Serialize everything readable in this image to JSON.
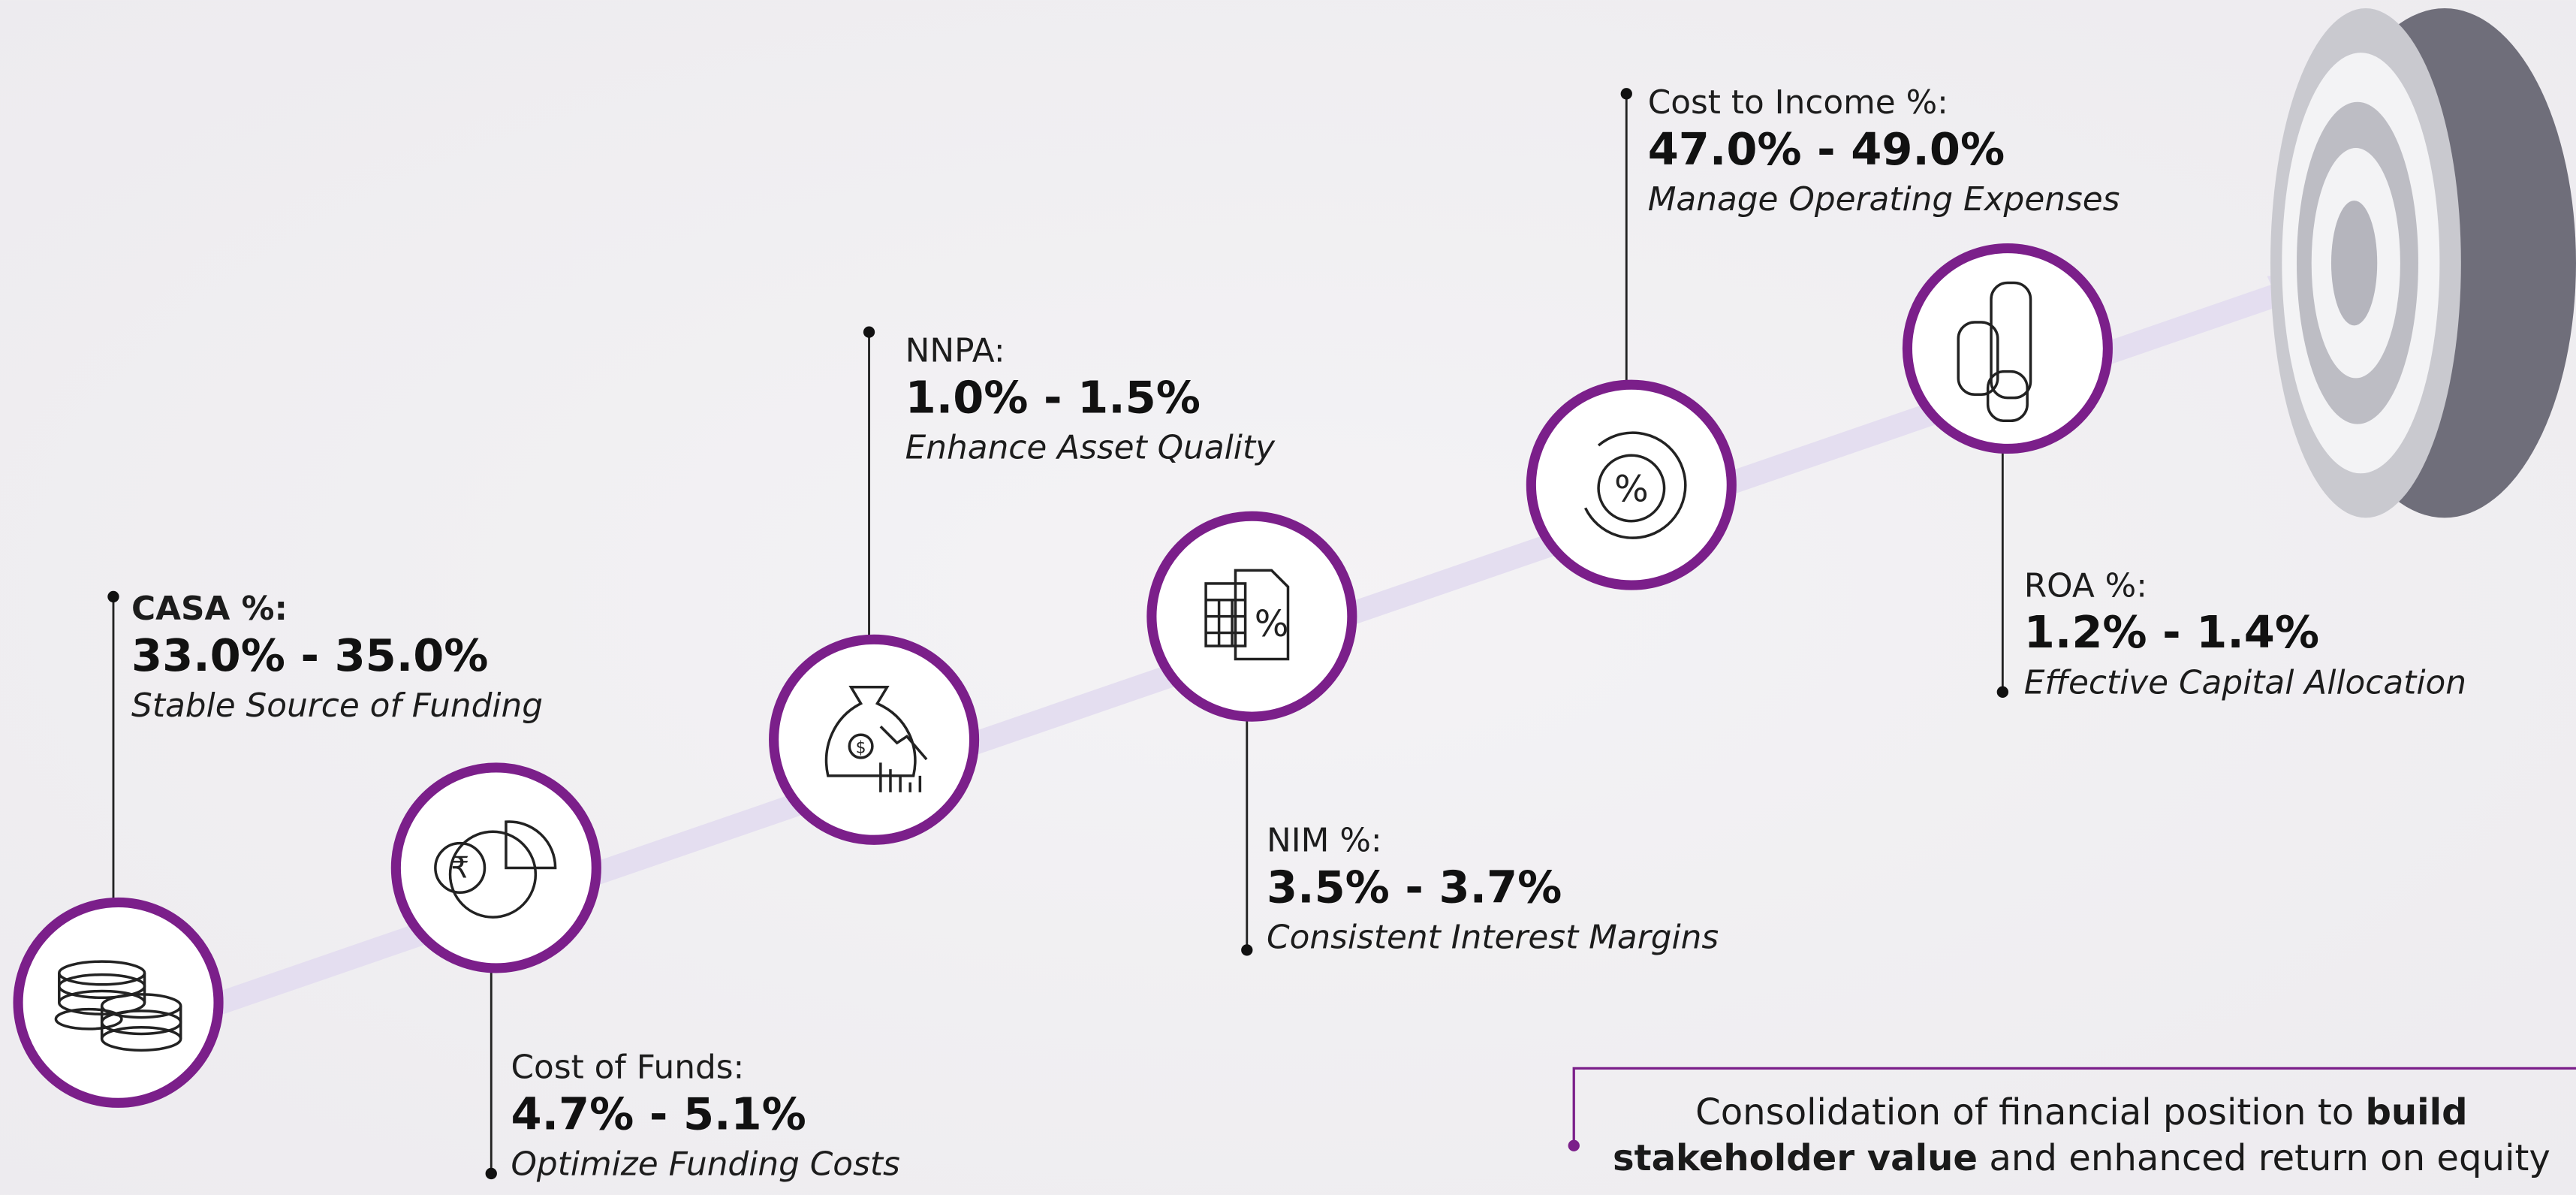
{
  "milestones": [
    {
      "label": "CASA %:",
      "range": "33.0% - 35.0%",
      "description": "Stable Source of Funding"
    },
    {
      "label": "Cost of Funds:",
      "range": "4.7% - 5.1%",
      "description": "Optimize Funding Costs"
    },
    {
      "label": "NNPA:",
      "range": "1.0% - 1.5%",
      "description": "Enhance Asset Quality"
    },
    {
      "label": "NIM %:",
      "range": "3.5% - 3.7%",
      "description": "Consistent Interest Margins"
    },
    {
      "label": "Cost to Income %:",
      "range": "47.0% - 49.0%",
      "description": "Manage Operating Expenses"
    },
    {
      "label": "ROA %:",
      "range": "1.2% - 1.4%",
      "description": "Effective Capital Allocation"
    }
  ],
  "footer": {
    "text_1": "Consolidation of financial position to",
    "bold_1": "build",
    "bold_2": "stakeholder value",
    "text_2": "and enhanced return on equity"
  }
}
